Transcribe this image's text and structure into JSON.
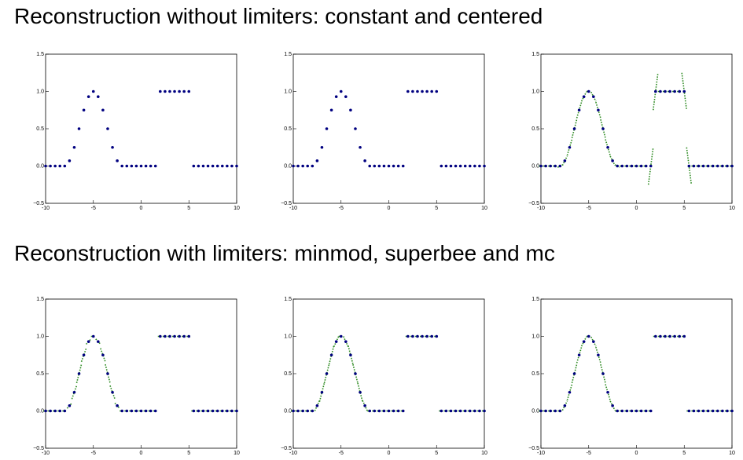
{
  "headings": [
    "Reconstruction without limiters: constant and centered",
    "Reconstruction with limiters: minmod, superbee and mc"
  ],
  "chart_data": [
    {
      "type": "scatter",
      "reconstruction": "constant",
      "color": "#000080",
      "line_color": "#2e8b22",
      "x": [
        -10,
        -9.5,
        -9,
        -8.5,
        -8,
        -7.5,
        -7,
        -6.5,
        -6,
        -5.5,
        -5,
        -4.5,
        -4,
        -3.5,
        -3,
        -2.5,
        -2,
        -1.5,
        -1,
        -0.5,
        0,
        0.5,
        1,
        1.5,
        2,
        2.5,
        3,
        3.5,
        4,
        4.5,
        5,
        5.5,
        6,
        6.5,
        7,
        7.5,
        8,
        8.5,
        9,
        9.5,
        10
      ],
      "values": [
        0,
        0,
        0,
        0,
        0,
        0.07,
        0.25,
        0.5,
        0.75,
        0.93,
        1,
        0.93,
        0.75,
        0.5,
        0.25,
        0.07,
        0,
        0,
        0,
        0,
        0,
        0,
        0,
        0,
        1,
        1,
        1,
        1,
        1,
        1,
        1,
        0,
        0,
        0,
        0,
        0,
        0,
        0,
        0,
        0,
        0
      ],
      "xlim": [
        -10,
        10
      ],
      "ylim": [
        -0.5,
        1.5
      ],
      "xticks": [
        -10,
        -5,
        0,
        5,
        10
      ],
      "yticks": [
        {
          "value": -0.5,
          "label": "−0.5"
        },
        {
          "value": 0,
          "label": "0.0"
        },
        0.5,
        {
          "value": 1,
          "label": "1.0"
        },
        1.5
      ]
    },
    {
      "type": "scatter",
      "reconstruction": "constant",
      "color": "#000080",
      "line_color": "#2e8b22",
      "x": [
        -10,
        -9.5,
        -9,
        -8.5,
        -8,
        -7.5,
        -7,
        -6.5,
        -6,
        -5.5,
        -5,
        -4.5,
        -4,
        -3.5,
        -3,
        -2.5,
        -2,
        -1.5,
        -1,
        -0.5,
        0,
        0.5,
        1,
        1.5,
        2,
        2.5,
        3,
        3.5,
        4,
        4.5,
        5,
        5.5,
        6,
        6.5,
        7,
        7.5,
        8,
        8.5,
        9,
        9.5,
        10
      ],
      "values": [
        0,
        0,
        0,
        0,
        0,
        0.07,
        0.25,
        0.5,
        0.75,
        0.93,
        1,
        0.93,
        0.75,
        0.5,
        0.25,
        0.07,
        0,
        0,
        0,
        0,
        0,
        0,
        0,
        0,
        1,
        1,
        1,
        1,
        1,
        1,
        1,
        0,
        0,
        0,
        0,
        0,
        0,
        0,
        0,
        0,
        0
      ],
      "xlim": [
        -10,
        10
      ],
      "ylim": [
        -0.5,
        1.5
      ],
      "xticks": [
        -10,
        -5,
        0,
        5,
        10
      ],
      "yticks": [
        {
          "value": -0.5,
          "label": "−0.5"
        },
        {
          "value": 0,
          "label": "0.0"
        },
        0.5,
        {
          "value": 1,
          "label": "1.0"
        },
        1.5
      ]
    },
    {
      "type": "scatter",
      "reconstruction": "centered",
      "color": "#000080",
      "line_color": "#2e8b22",
      "x": [
        -10,
        -9.5,
        -9,
        -8.5,
        -8,
        -7.5,
        -7,
        -6.5,
        -6,
        -5.5,
        -5,
        -4.5,
        -4,
        -3.5,
        -3,
        -2.5,
        -2,
        -1.5,
        -1,
        -0.5,
        0,
        0.5,
        1,
        1.5,
        2,
        2.5,
        3,
        3.5,
        4,
        4.5,
        5,
        5.5,
        6,
        6.5,
        7,
        7.5,
        8,
        8.5,
        9,
        9.5,
        10
      ],
      "values": [
        0,
        0,
        0,
        0,
        0,
        0.07,
        0.25,
        0.5,
        0.75,
        0.93,
        1,
        0.93,
        0.75,
        0.5,
        0.25,
        0.07,
        0,
        0,
        0,
        0,
        0,
        0,
        0,
        0,
        1,
        1,
        1,
        1,
        1,
        1,
        1,
        0,
        0,
        0,
        0,
        0,
        0,
        0,
        0,
        0,
        0
      ],
      "xlim": [
        -10,
        10
      ],
      "ylim": [
        -0.5,
        1.5
      ],
      "xticks": [
        -10,
        -5,
        0,
        5,
        10
      ],
      "yticks": [
        {
          "value": -0.5,
          "label": "−0.5"
        },
        {
          "value": 0,
          "label": "0.0"
        },
        0.5,
        {
          "value": 1,
          "label": "1.0"
        },
        1.5
      ]
    },
    {
      "type": "scatter",
      "reconstruction": "minmod",
      "color": "#000080",
      "line_color": "#2e8b22",
      "x": [
        -10,
        -9.5,
        -9,
        -8.5,
        -8,
        -7.5,
        -7,
        -6.5,
        -6,
        -5.5,
        -5,
        -4.5,
        -4,
        -3.5,
        -3,
        -2.5,
        -2,
        -1.5,
        -1,
        -0.5,
        0,
        0.5,
        1,
        1.5,
        2,
        2.5,
        3,
        3.5,
        4,
        4.5,
        5,
        5.5,
        6,
        6.5,
        7,
        7.5,
        8,
        8.5,
        9,
        9.5,
        10
      ],
      "values": [
        0,
        0,
        0,
        0,
        0,
        0.07,
        0.25,
        0.5,
        0.75,
        0.93,
        1,
        0.93,
        0.75,
        0.5,
        0.25,
        0.07,
        0,
        0,
        0,
        0,
        0,
        0,
        0,
        0,
        1,
        1,
        1,
        1,
        1,
        1,
        1,
        0,
        0,
        0,
        0,
        0,
        0,
        0,
        0,
        0,
        0
      ],
      "xlim": [
        -10,
        10
      ],
      "ylim": [
        -0.5,
        1.5
      ],
      "xticks": [
        -10,
        -5,
        0,
        5,
        10
      ],
      "yticks": [
        {
          "value": -0.5,
          "label": "−0.5"
        },
        {
          "value": 0,
          "label": "0.0"
        },
        0.5,
        {
          "value": 1,
          "label": "1.0"
        },
        1.5
      ]
    },
    {
      "type": "scatter",
      "reconstruction": "superbee",
      "color": "#000080",
      "line_color": "#2e8b22",
      "x": [
        -10,
        -9.5,
        -9,
        -8.5,
        -8,
        -7.5,
        -7,
        -6.5,
        -6,
        -5.5,
        -5,
        -4.5,
        -4,
        -3.5,
        -3,
        -2.5,
        -2,
        -1.5,
        -1,
        -0.5,
        0,
        0.5,
        1,
        1.5,
        2,
        2.5,
        3,
        3.5,
        4,
        4.5,
        5,
        5.5,
        6,
        6.5,
        7,
        7.5,
        8,
        8.5,
        9,
        9.5,
        10
      ],
      "values": [
        0,
        0,
        0,
        0,
        0,
        0.07,
        0.25,
        0.5,
        0.75,
        0.93,
        1,
        0.93,
        0.75,
        0.5,
        0.25,
        0.07,
        0,
        0,
        0,
        0,
        0,
        0,
        0,
        0,
        1,
        1,
        1,
        1,
        1,
        1,
        1,
        0,
        0,
        0,
        0,
        0,
        0,
        0,
        0,
        0,
        0
      ],
      "xlim": [
        -10,
        10
      ],
      "ylim": [
        -0.5,
        1.5
      ],
      "xticks": [
        -10,
        -5,
        0,
        5,
        10
      ],
      "yticks": [
        {
          "value": -0.5,
          "label": "−0.5"
        },
        {
          "value": 0,
          "label": "0.0"
        },
        0.5,
        {
          "value": 1,
          "label": "1.0"
        },
        1.5
      ]
    },
    {
      "type": "scatter",
      "reconstruction": "mc",
      "color": "#000080",
      "line_color": "#2e8b22",
      "x": [
        -10,
        -9.5,
        -9,
        -8.5,
        -8,
        -7.5,
        -7,
        -6.5,
        -6,
        -5.5,
        -5,
        -4.5,
        -4,
        -3.5,
        -3,
        -2.5,
        -2,
        -1.5,
        -1,
        -0.5,
        0,
        0.5,
        1,
        1.5,
        2,
        2.5,
        3,
        3.5,
        4,
        4.5,
        5,
        5.5,
        6,
        6.5,
        7,
        7.5,
        8,
        8.5,
        9,
        9.5,
        10
      ],
      "values": [
        0,
        0,
        0,
        0,
        0,
        0.07,
        0.25,
        0.5,
        0.75,
        0.93,
        1,
        0.93,
        0.75,
        0.5,
        0.25,
        0.07,
        0,
        0,
        0,
        0,
        0,
        0,
        0,
        0,
        1,
        1,
        1,
        1,
        1,
        1,
        1,
        0,
        0,
        0,
        0,
        0,
        0,
        0,
        0,
        0,
        0
      ],
      "xlim": [
        -10,
        10
      ],
      "ylim": [
        -0.5,
        1.5
      ],
      "xticks": [
        -10,
        -5,
        0,
        5,
        10
      ],
      "yticks": [
        {
          "value": -0.5,
          "label": "−0.5"
        },
        {
          "value": 0,
          "label": "0.0"
        },
        0.5,
        {
          "value": 1,
          "label": "1.0"
        },
        1.5
      ]
    }
  ]
}
